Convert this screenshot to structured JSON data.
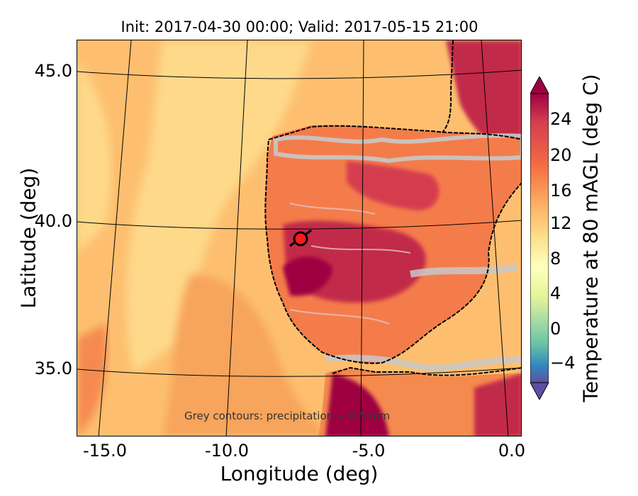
{
  "title": "Init: 2017-04-30 00:00; Valid: 2017-05-15 21:00",
  "axes": {
    "xlabel": "Longitude (deg)",
    "ylabel": "Latitude (deg)",
    "xticks": [
      "-15.0",
      "-10.0",
      "-5.0",
      "0.0"
    ],
    "yticks": [
      "45.0",
      "40.0",
      "35.0"
    ],
    "xlim": [
      -16.0,
      0.3
    ],
    "ylim": [
      33.0,
      46.2
    ]
  },
  "annotation": "Grey contours: precipitation ~ 0.5 mm",
  "colorbar": {
    "label": "Temperature at 80 mAGL (deg C)",
    "ticks": [
      "24",
      "20",
      "16",
      "12",
      "8",
      "4",
      "0",
      "−4"
    ],
    "range": [
      -6,
      26
    ],
    "extend": "both",
    "colormap": "Spectral_r"
  },
  "marker": {
    "label_hidden": true,
    "lon": -7.6,
    "lat": 39.4,
    "color": "#ff1a1a"
  },
  "colors": {
    "ocean_light": "#fed98a",
    "ocean_mid": "#fdbf6f",
    "ocean_warm": "#f58a4f",
    "land_hot": "#c22a4a",
    "land_very_hot": "#9e0142",
    "precip_contour": "#c8c8c8",
    "coast": "#000000"
  }
}
